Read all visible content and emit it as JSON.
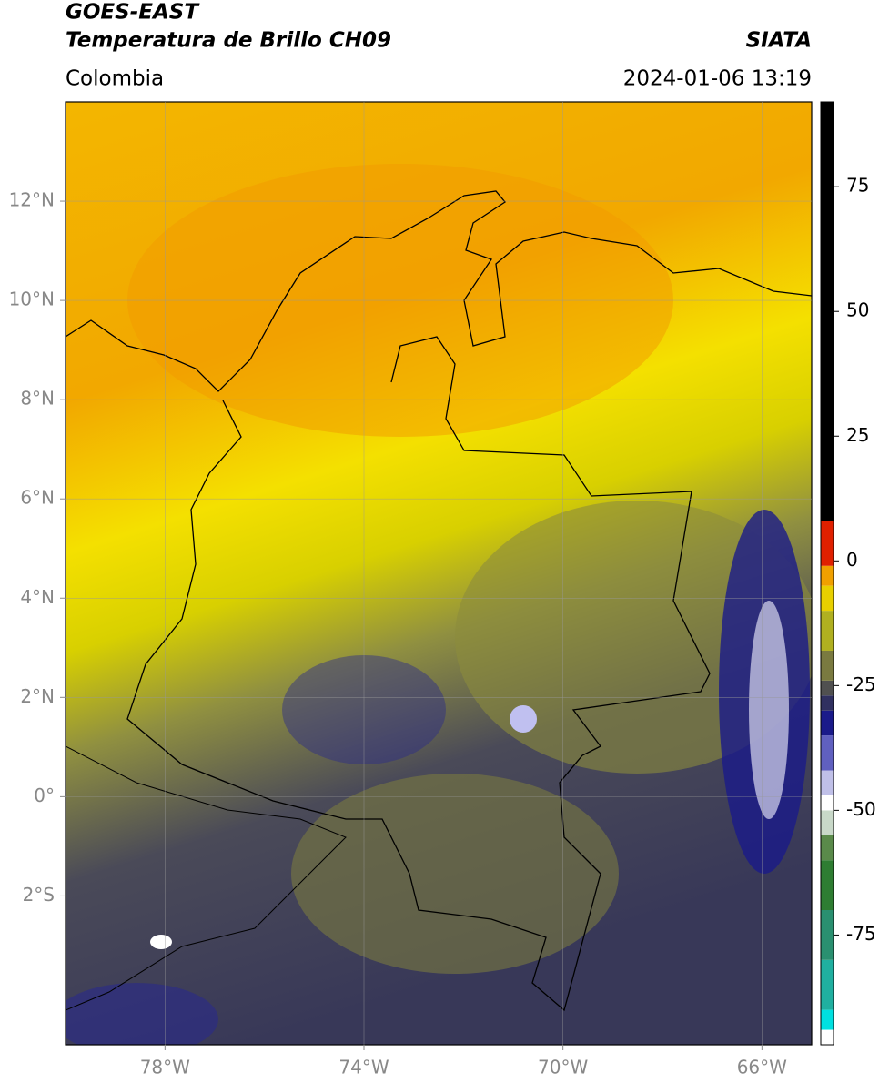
{
  "header": {
    "title": "GOES-EAST",
    "subtitle": "Temperatura de Brillo CH09",
    "source": "SIATA",
    "region": "Colombia",
    "timestamp": "2024-01-06 13:19"
  },
  "map": {
    "xlim": [
      -80,
      -65
    ],
    "ylim": [
      -5,
      14
    ],
    "xticks": [
      {
        "value": -78,
        "label": "78°W"
      },
      {
        "value": -74,
        "label": "74°W"
      },
      {
        "value": -70,
        "label": "70°W"
      },
      {
        "value": -66,
        "label": "66°W"
      }
    ],
    "yticks": [
      {
        "value": 12,
        "label": "12°N"
      },
      {
        "value": 10,
        "label": "10°N"
      },
      {
        "value": 8,
        "label": "8°N"
      },
      {
        "value": 6,
        "label": "6°N"
      },
      {
        "value": 4,
        "label": "4°N"
      },
      {
        "value": 2,
        "label": "2°N"
      },
      {
        "value": 0,
        "label": "0°"
      },
      {
        "value": -2,
        "label": "2°S"
      }
    ],
    "grid": true
  },
  "colorbar": {
    "clim": [
      -97,
      92
    ],
    "ticks": [
      75,
      50,
      25,
      0,
      -25,
      -50,
      -75
    ],
    "colormap": [
      {
        "value": -97,
        "color": "#ffffff"
      },
      {
        "value": -94,
        "color": "#00e0e0"
      },
      {
        "value": -90,
        "color": "#20b0a0"
      },
      {
        "value": -80,
        "color": "#2a9070"
      },
      {
        "value": -70,
        "color": "#2e7d32"
      },
      {
        "value": -60,
        "color": "#5a8a4a"
      },
      {
        "value": -55,
        "color": "#c8d8c8"
      },
      {
        "value": -50,
        "color": "#ffffff"
      },
      {
        "value": -47,
        "color": "#c0c0e8"
      },
      {
        "value": -42,
        "color": "#6060c0"
      },
      {
        "value": -35,
        "color": "#1a1a8a"
      },
      {
        "value": -30,
        "color": "#303060"
      },
      {
        "value": -27,
        "color": "#505050"
      },
      {
        "value": -24,
        "color": "#7a7a40"
      },
      {
        "value": -18,
        "color": "#b0b020"
      },
      {
        "value": -10,
        "color": "#e8d000"
      },
      {
        "value": -5,
        "color": "#f0a000"
      },
      {
        "value": -1,
        "color": "#e02000"
      },
      {
        "value": 8,
        "color": "#000000"
      }
    ]
  }
}
